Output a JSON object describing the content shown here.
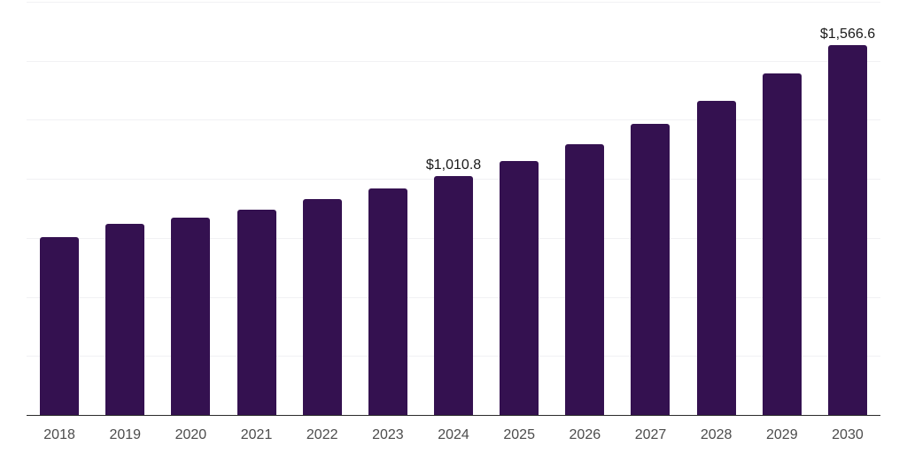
{
  "chart_data": {
    "type": "bar",
    "title": "",
    "xlabel": "",
    "ylabel": "",
    "categories": [
      "2018",
      "2019",
      "2020",
      "2021",
      "2022",
      "2023",
      "2024",
      "2025",
      "2026",
      "2027",
      "2028",
      "2029",
      "2030"
    ],
    "values": [
      753,
      809.5,
      836,
      869.5,
      915,
      958,
      1010.8,
      1074.5,
      1148,
      1232,
      1329,
      1445.5,
      1566.6
    ],
    "data_labels": {
      "2024": "$1,010.8",
      "2030": "$1,566.6"
    },
    "ylim": [
      0,
      1757
    ],
    "gridline_values": [
      250,
      500,
      750,
      1000,
      1250,
      1500,
      1750
    ],
    "grid": "horizontal-only",
    "legend": "none",
    "value_unit": "USD (million/billion, as labeled)"
  },
  "colors": {
    "bar": "#341150",
    "gridline": "#f1f1f4",
    "axis_line": "#2b2b2b",
    "tick_label": "#4c4c4c",
    "data_label": "#1a1a1a",
    "background": "#ffffff"
  }
}
